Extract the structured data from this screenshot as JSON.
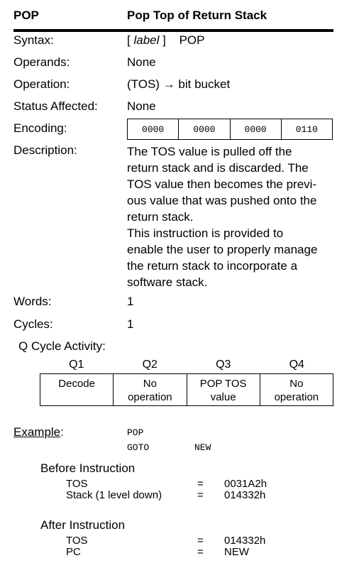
{
  "header": {
    "mnemonic": "POP",
    "title": "Pop Top of Return Stack"
  },
  "syntax": {
    "label": "Syntax:",
    "open": "[",
    "arg": "label",
    "close": "]",
    "mnemonic": "POP"
  },
  "operands": {
    "label": "Operands:",
    "value": "None"
  },
  "operation": {
    "label": "Operation:",
    "value": "(TOS) → bit bucket"
  },
  "status": {
    "label": "Status Affected:",
    "value": "None"
  },
  "encoding": {
    "label": "Encoding:",
    "bits": [
      "0000",
      "0000",
      "0000",
      "0110"
    ]
  },
  "description": {
    "label": "Description:",
    "lines1": [
      "The TOS value is pulled off the",
      "return stack and is discarded. The",
      "TOS value then becomes the previ-",
      "ous value that was pushed onto the",
      "return stack."
    ],
    "lines2": [
      "This instruction is provided to",
      "enable the user to properly manage",
      "the return stack to incorporate a",
      "software stack."
    ]
  },
  "words": {
    "label": "Words:",
    "value": "1"
  },
  "cycles": {
    "label": "Cycles:",
    "value": "1"
  },
  "qcycle": {
    "label": "Q Cycle Activity:",
    "headers": [
      "Q1",
      "Q2",
      "Q3",
      "Q4"
    ],
    "cells": [
      "Decode",
      "No\noperation",
      "POP TOS\nvalue",
      "No\noperation"
    ]
  },
  "example": {
    "label": "Example",
    "colon": ":",
    "code": [
      {
        "op": "POP",
        "arg": ""
      },
      {
        "op": "GOTO",
        "arg": "NEW"
      }
    ],
    "before": {
      "title": "Before Instruction",
      "rows": [
        {
          "name": "TOS",
          "eq": "=",
          "val": "0031A2h"
        },
        {
          "name": "Stack (1 level down)",
          "eq": "=",
          "val": "014332h"
        }
      ]
    },
    "after": {
      "title": "After Instruction",
      "rows": [
        {
          "name": "TOS",
          "eq": "=",
          "val": "014332h"
        },
        {
          "name": "PC",
          "eq": "=",
          "val": "NEW"
        }
      ]
    }
  }
}
